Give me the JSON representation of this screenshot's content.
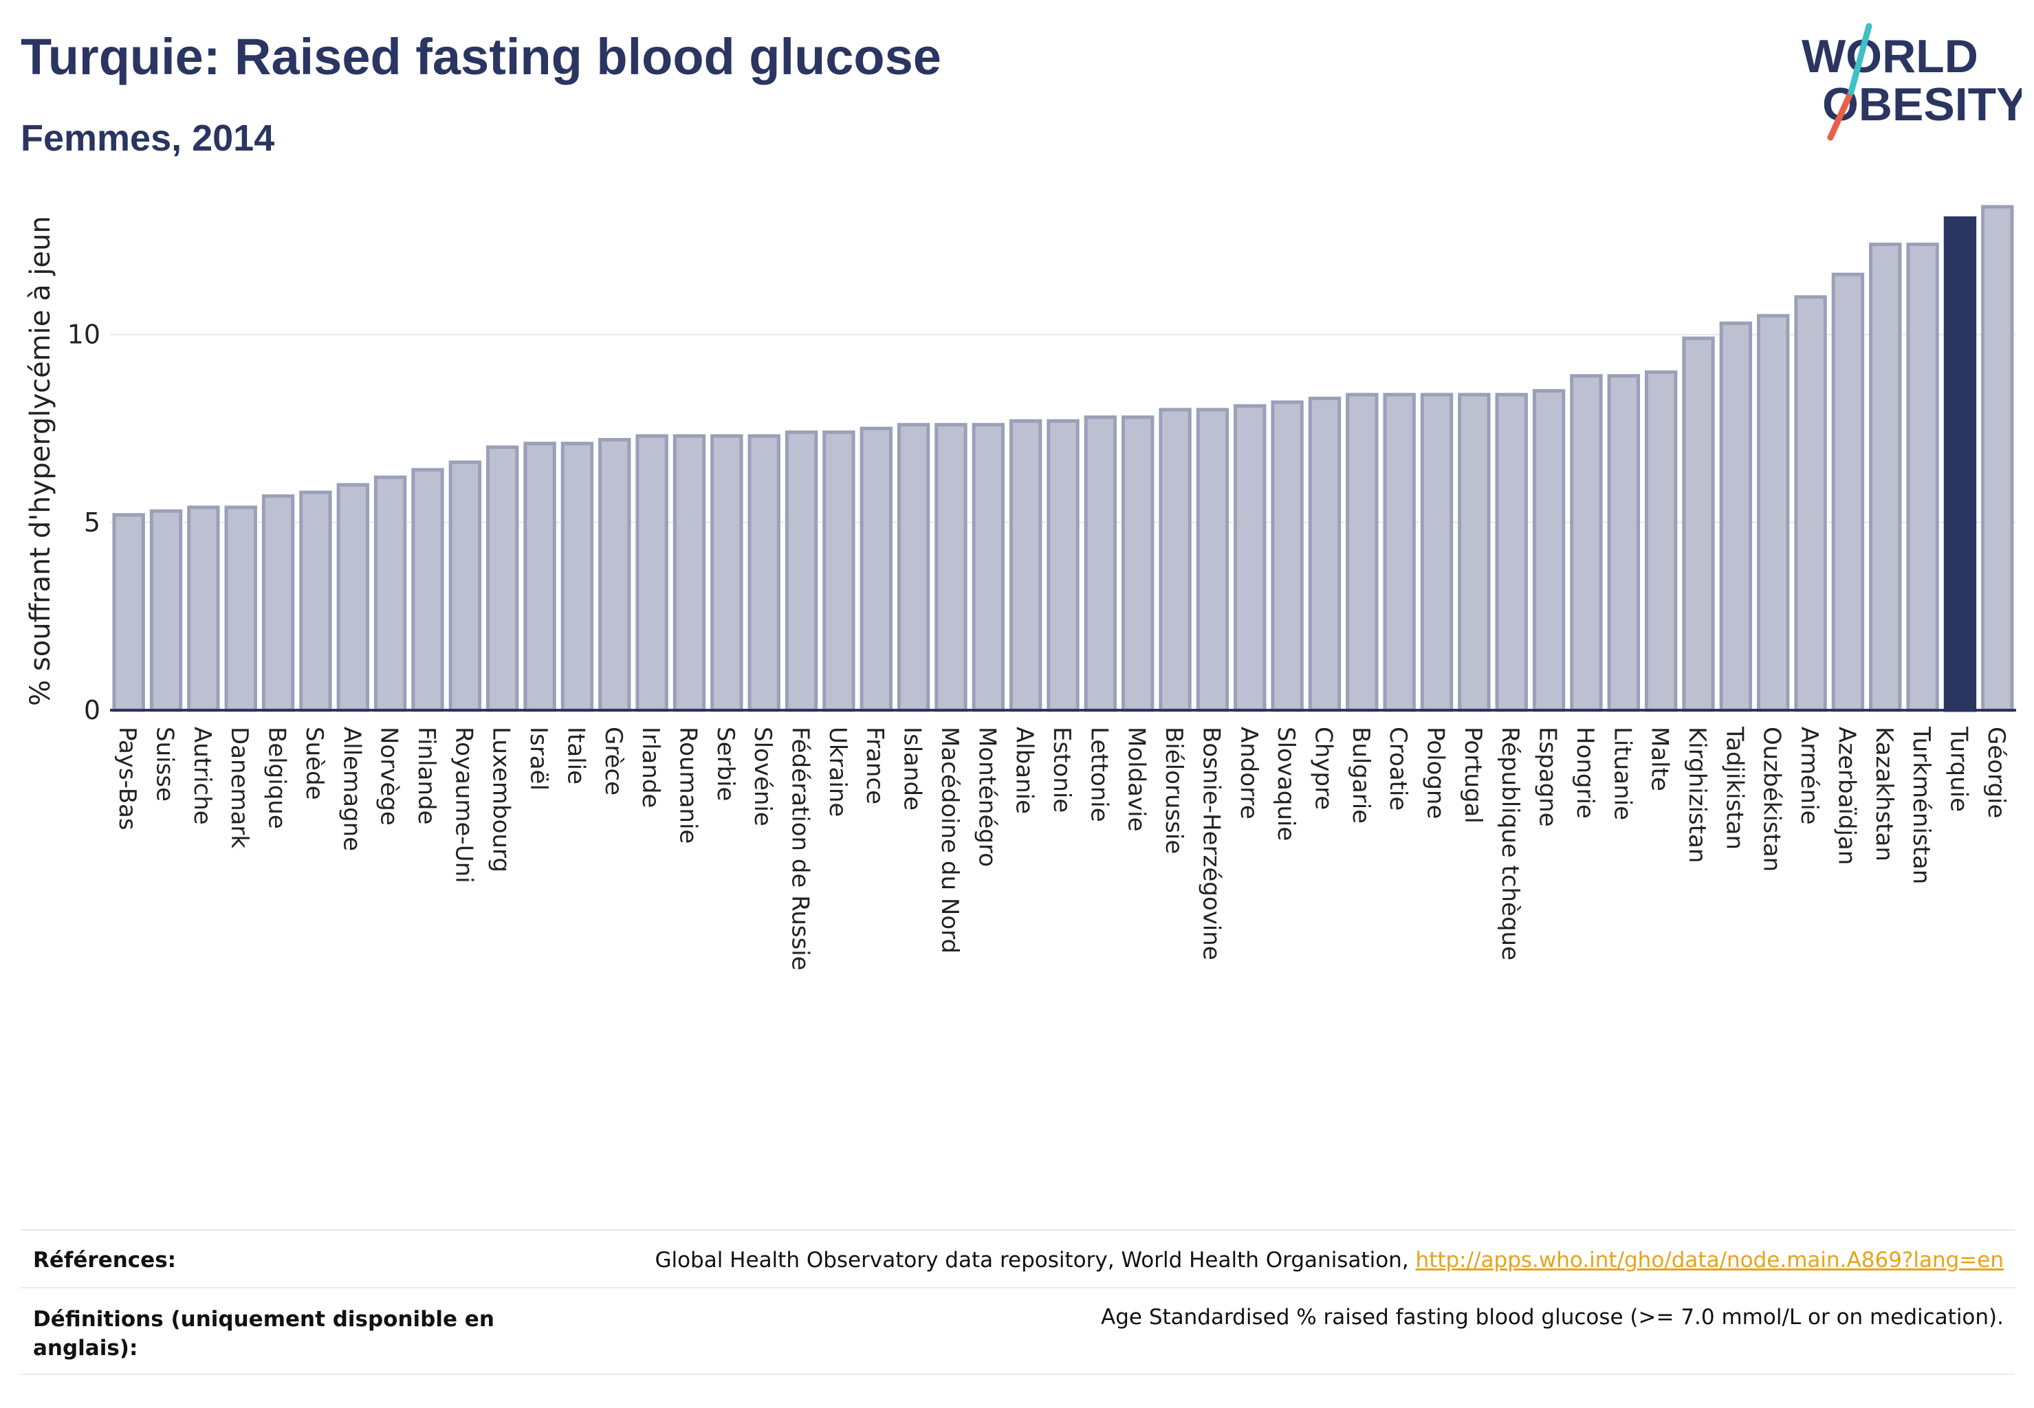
{
  "header": {
    "title": "Turquie: Raised fasting blood glucose",
    "subtitle": "Femmes, 2014"
  },
  "logo": {
    "line1": "WORLD",
    "line2": "OBESITY"
  },
  "colors": {
    "bar": "#bcc0d0",
    "bar_stroke": "#9aa0b8",
    "highlight": "#2a3561",
    "text": "#2a3561",
    "grid": "#e6e7ee",
    "link": "#e8a21a",
    "logo_slash_teal": "#3ec1c4",
    "logo_slash_red": "#e8604c"
  },
  "chart_data": {
    "type": "bar",
    "title": "Turquie: Raised fasting blood glucose",
    "subtitle": "Femmes, 2014",
    "xlabel": "",
    "ylabel": "% souffrant d'hyperglycémie à jeun",
    "ylim": [
      0,
      14
    ],
    "yticks": [
      0,
      5,
      10
    ],
    "grid": true,
    "highlight": "Turquie",
    "categories": [
      "Pays-Bas",
      "Suisse",
      "Autriche",
      "Danemark",
      "Belgique",
      "Suède",
      "Allemagne",
      "Norvège",
      "Finlande",
      "Royaume-Uni",
      "Luxembourg",
      "Israël",
      "Italie",
      "Grèce",
      "Irlande",
      "Roumanie",
      "Serbie",
      "Slovénie",
      "Fédération de Russie",
      "Ukraine",
      "France",
      "Islande",
      "Macédoine du Nord",
      "Monténégro",
      "Albanie",
      "Estonie",
      "Lettonie",
      "Moldavie",
      "Biélorussie",
      "Bosnie-Herzégovine",
      "Andorre",
      "Slovaquie",
      "Chypre",
      "Bulgarie",
      "Croatie",
      "Pologne",
      "Portugal",
      "République tchèque",
      "Espagne",
      "Hongrie",
      "Lituanie",
      "Malte",
      "Kirghizistan",
      "Tadjikistan",
      "Ouzbékistan",
      "Arménie",
      "Azerbaïdjan",
      "Kazakhstan",
      "Turkménistan",
      "Turquie",
      "Géorgie"
    ],
    "values": [
      5.2,
      5.3,
      5.4,
      5.4,
      5.7,
      5.8,
      6.0,
      6.2,
      6.4,
      6.6,
      7.0,
      7.1,
      7.1,
      7.2,
      7.3,
      7.3,
      7.3,
      7.3,
      7.4,
      7.4,
      7.5,
      7.6,
      7.6,
      7.6,
      7.7,
      7.7,
      7.8,
      7.8,
      8.0,
      8.0,
      8.1,
      8.2,
      8.3,
      8.4,
      8.4,
      8.4,
      8.4,
      8.4,
      8.5,
      8.9,
      8.9,
      9.0,
      9.9,
      10.3,
      10.5,
      11.0,
      11.6,
      12.4,
      12.4,
      13.1,
      13.4
    ]
  },
  "footer": {
    "references_label": "Références:",
    "references_text": "Global Health Observatory data repository, World Health Organisation, ",
    "references_link": "http://apps.who.int/gho/data/node.main.A869?lang=en",
    "definitions_label_line1": "Définitions (uniquement disponible en",
    "definitions_label_line2": "anglais):",
    "definitions_text": "Age Standardised % raised fasting blood glucose (>= 7.0 mmol/L or on medication)."
  }
}
